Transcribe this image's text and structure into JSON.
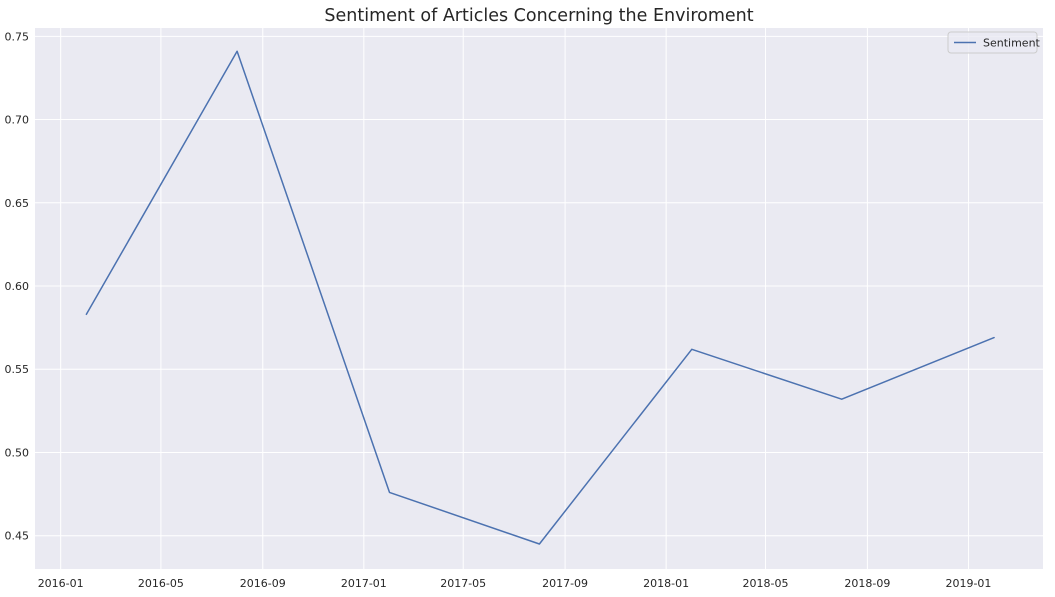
{
  "chart_data": {
    "type": "line",
    "title": "Sentiment of Articles Concerning the Enviroment",
    "xlabel": "",
    "ylabel": "",
    "x": [
      "2016-02-01",
      "2016-08-01",
      "2017-02-01",
      "2017-08-01",
      "2018-02-01",
      "2018-08-01",
      "2019-02-01"
    ],
    "series": [
      {
        "name": "Sentiment",
        "color": "#4c72b0",
        "values": [
          0.583,
          0.741,
          0.476,
          0.445,
          0.562,
          0.532,
          0.569
        ]
      }
    ],
    "xlim": [
      "2015-12-01",
      "2019-04-01"
    ],
    "ylim": [
      0.43,
      0.755
    ],
    "xticks": [
      "2016-01",
      "2016-05",
      "2016-09",
      "2017-01",
      "2017-05",
      "2017-09",
      "2018-01",
      "2018-05",
      "2018-09",
      "2019-01"
    ],
    "yticks": [
      "0.45",
      "0.50",
      "0.55",
      "0.60",
      "0.65",
      "0.70",
      "0.75"
    ],
    "grid": true,
    "legend_position": "top-right",
    "background_color": "#eaeaf2",
    "grid_color": "#ffffff"
  }
}
